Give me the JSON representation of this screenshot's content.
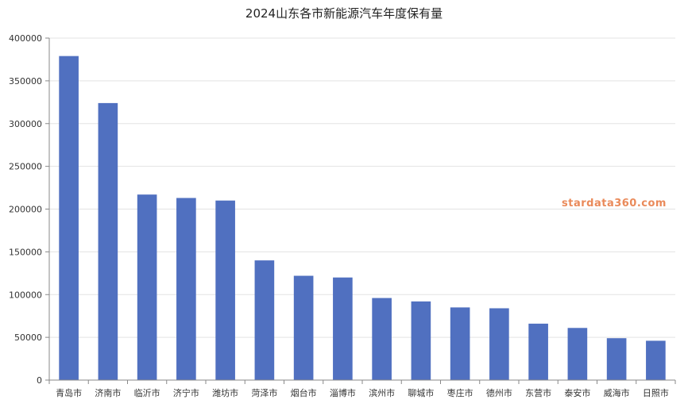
{
  "chart_data": {
    "type": "bar",
    "title": "2024山东各市新能源汽车年度保有量",
    "xlabel": "",
    "ylabel": "",
    "ylim": [
      0,
      400000
    ],
    "yticks": [
      "0",
      "50000",
      "100000",
      "150000",
      "200000",
      "250000",
      "300000",
      "350000",
      "400000"
    ],
    "categories": [
      "青岛市",
      "济南市",
      "临沂市",
      "济宁市",
      "潍坊市",
      "菏泽市",
      "烟台市",
      "淄博市",
      "滨州市",
      "聊城市",
      "枣庄市",
      "德州市",
      "东营市",
      "泰安市",
      "威海市",
      "日照市"
    ],
    "values": [
      379000,
      324000,
      217000,
      213000,
      210000,
      140000,
      122000,
      120000,
      96000,
      92000,
      85000,
      84000,
      66000,
      61000,
      49000,
      46000
    ],
    "bar_color": "#5070c0",
    "grid": true,
    "legend": "none"
  },
  "watermark": "stardata360.com"
}
